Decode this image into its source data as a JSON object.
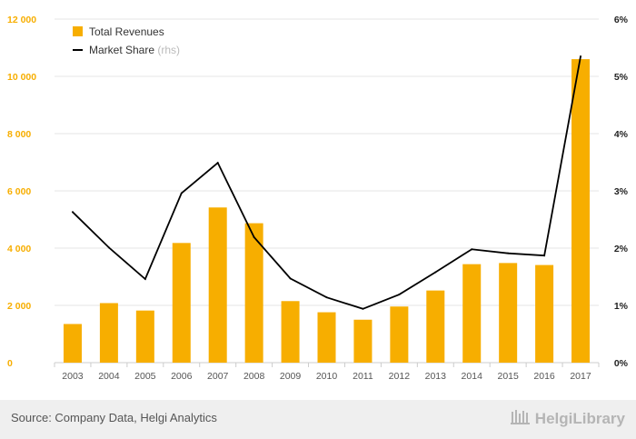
{
  "chart_data": {
    "type": "bar",
    "categories": [
      "2003",
      "2004",
      "2005",
      "2006",
      "2007",
      "2008",
      "2009",
      "2010",
      "2011",
      "2012",
      "2013",
      "2014",
      "2015",
      "2016",
      "2017"
    ],
    "series": [
      {
        "name": "Total Revenues",
        "type": "bar",
        "axis": "left",
        "color": "#f7ae00",
        "values": [
          1350,
          2080,
          1820,
          4180,
          5420,
          4870,
          2150,
          1760,
          1500,
          1960,
          2520,
          3440,
          3480,
          3410,
          10600
        ]
      },
      {
        "name": "Market Share",
        "name_suffix": "(rhs)",
        "type": "line",
        "axis": "right",
        "color": "#000000",
        "values": [
          2.63,
          2.01,
          1.46,
          2.96,
          3.49,
          2.19,
          1.47,
          1.14,
          0.94,
          1.19,
          1.58,
          1.98,
          1.91,
          1.87,
          5.35
        ]
      }
    ],
    "ylim": [
      0,
      12000
    ],
    "y_ticks": [
      "0",
      "2 000",
      "4 000",
      "6 000",
      "8 000",
      "10 000",
      "12 000"
    ],
    "y2lim": [
      0,
      6
    ],
    "y2_ticks": [
      "0%",
      "1%",
      "2%",
      "3%",
      "4%",
      "5%",
      "6%"
    ],
    "grid": true,
    "legend_position": "top-left",
    "title": "",
    "xlabel": "",
    "ylabel": ""
  },
  "footer": {
    "source": "Source: Company Data, Helgi Analytics",
    "brand": "HelgiLibrary"
  },
  "colors": {
    "bar": "#f7ae00",
    "line": "#000000",
    "left_tick_text": "#f7ae00",
    "right_tick_text": "#222222",
    "footer_bg": "#efefef"
  }
}
